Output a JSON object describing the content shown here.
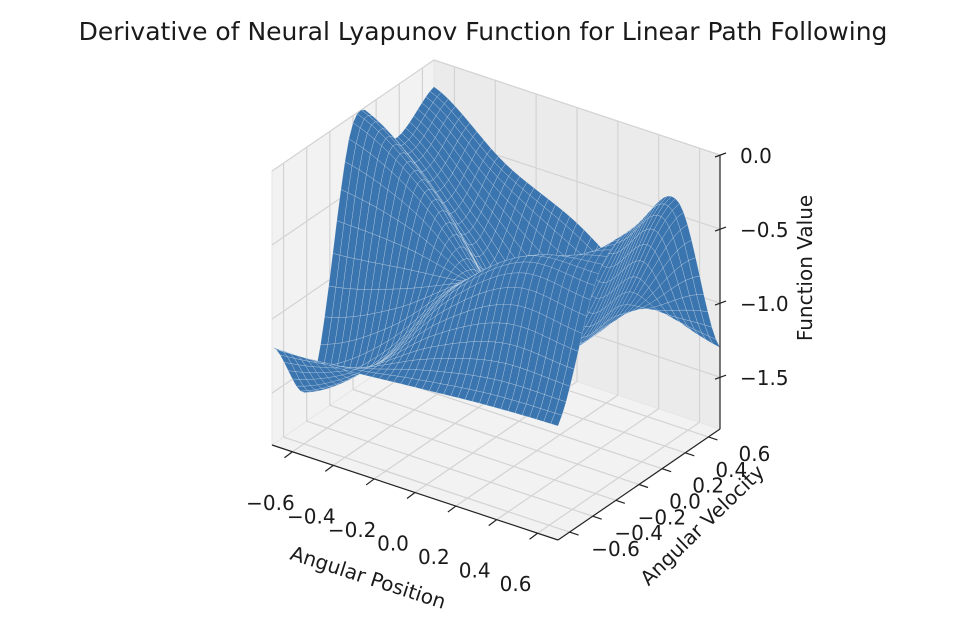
{
  "chart_data": {
    "type": "surface3d",
    "title": "Derivative of Neural Lyapunov Function for Linear Path Following",
    "xlabel": "Angular Position",
    "ylabel": "Angular Velocity",
    "zlabel": "Function Value",
    "xlim": [
      -0.7,
      0.7
    ],
    "ylim": [
      -0.7,
      0.7
    ],
    "zlim": [
      -1.85,
      0.0
    ],
    "x_ticks": [
      -0.6,
      -0.4,
      -0.2,
      0.0,
      0.2,
      0.4,
      0.6
    ],
    "x_tick_labels": [
      "−0.6",
      "−0.4",
      "−0.2",
      "0.0",
      "0.2",
      "0.4",
      "0.6"
    ],
    "y_ticks": [
      -0.6,
      -0.4,
      -0.2,
      0.0,
      0.2,
      0.4,
      0.6
    ],
    "y_tick_labels": [
      "−0.6",
      "−0.4",
      "−0.2",
      "0.0",
      "0.2",
      "0.4",
      "0.6"
    ],
    "z_ticks": [
      0.0,
      -0.5,
      -1.0,
      -1.5
    ],
    "z_tick_labels": [
      "0.0",
      "−0.5",
      "−1.0",
      "−1.5"
    ],
    "surface_color": "#3b75af",
    "grid": true,
    "surface_samples": {
      "x": [
        -0.7,
        -0.35,
        0.0,
        0.35,
        0.7
      ],
      "y": [
        -0.7,
        -0.35,
        0.0,
        0.35,
        0.7
      ],
      "z": [
        [
          -1.19,
          -1.18,
          -1.14,
          -1.1,
          -1.08
        ],
        [
          -1.61,
          -1.25,
          -0.65,
          -0.28,
          -0.24
        ],
        [
          -0.05,
          -0.36,
          -0.91,
          -1.04,
          -0.08
        ],
        [
          -0.35,
          -0.83,
          -1.38,
          -1.12,
          -0.14
        ],
        [
          -0.18,
          -0.54,
          -0.78,
          -1.12,
          -1.3
        ]
      ]
    }
  }
}
